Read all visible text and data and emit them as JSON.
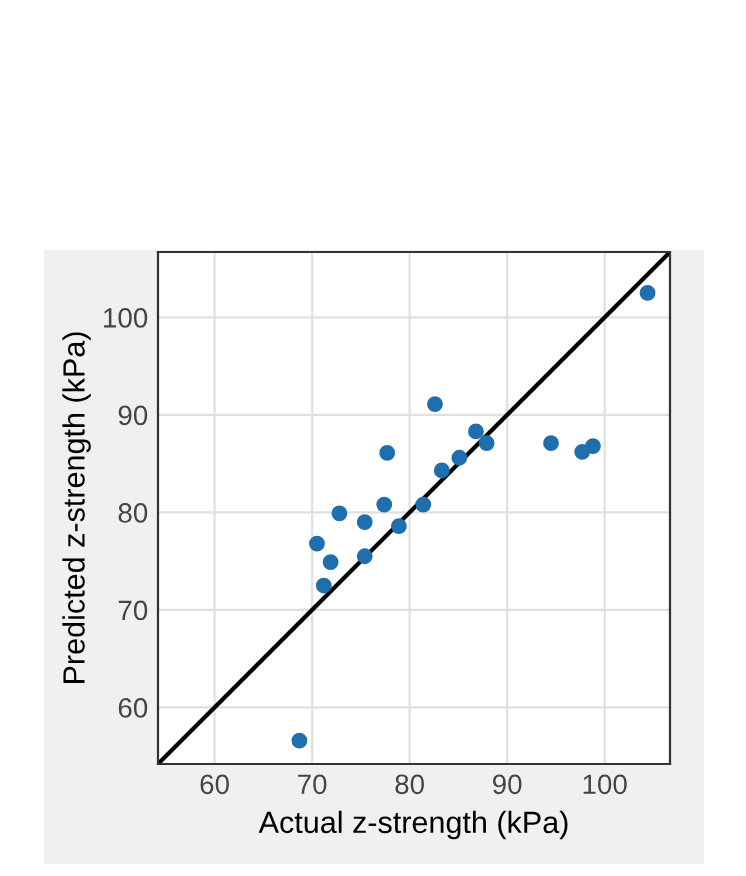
{
  "chart_data": {
    "type": "scatter",
    "xlabel": "Actual z-strength (kPa)",
    "ylabel": "Predicted z-strength (kPa)",
    "series": [
      {
        "color": "#1f6fae",
        "marker": "circle",
        "x": [
          68.7,
          70.5,
          71.2,
          71.9,
          72.8,
          75.4,
          75.4,
          77.4,
          77.7,
          78.9,
          81.4,
          82.6,
          83.3,
          85.1,
          86.8,
          87.9,
          94.5,
          97.7,
          98.8,
          104.4
        ],
        "values": [
          56.6,
          76.8,
          72.5,
          74.9,
          79.9,
          79.0,
          75.5,
          80.8,
          86.1,
          78.6,
          80.8,
          91.1,
          84.3,
          85.6,
          88.3,
          87.1,
          87.1,
          86.2,
          86.8,
          102.5
        ]
      },
      {
        "type": "line",
        "color": "#000000",
        "marker": "none",
        "line_style": "solid",
        "x": [
          54.2,
          106.7
        ],
        "values": [
          54.2,
          106.7
        ]
      }
    ],
    "xlim": [
      54.2,
      106.7
    ],
    "ylim": [
      54.2,
      106.7
    ],
    "xticks": [
      60,
      70,
      80,
      90,
      100
    ],
    "yticks": [
      60,
      70,
      80,
      90,
      100
    ],
    "grid": true,
    "legend": false
  }
}
